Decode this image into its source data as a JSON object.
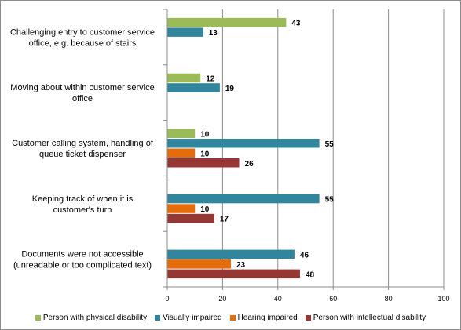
{
  "chart_data": {
    "type": "bar",
    "orientation": "horizontal",
    "categories": [
      [
        "Challenging entry to customer service",
        "office, e.g. because of stairs"
      ],
      [
        "Moving about within customer service",
        "office"
      ],
      [
        "Customer calling system,  handling of",
        "queue ticket dispenser"
      ],
      [
        "Keeping track of  when it is",
        "customer's turn"
      ],
      [
        "Documents were not accessible",
        "(unreadable or too complicated text)"
      ]
    ],
    "series": [
      {
        "name": "Person with physical disability",
        "color": "#9bbb59",
        "values": [
          43,
          12,
          10,
          null,
          null
        ]
      },
      {
        "name": "Visually impaired",
        "color": "#31859c",
        "values": [
          13,
          19,
          55,
          55,
          46
        ]
      },
      {
        "name": "Hearing impaired",
        "color": "#e46c0a",
        "values": [
          null,
          null,
          10,
          10,
          23
        ]
      },
      {
        "name": "Person with intellectual disability",
        "color": "#953735",
        "values": [
          null,
          null,
          26,
          17,
          48
        ]
      }
    ],
    "xlim": [
      0,
      100
    ],
    "xticks": [
      0,
      20,
      40,
      60,
      80,
      100
    ],
    "grid": true,
    "legend_position": "bottom"
  }
}
